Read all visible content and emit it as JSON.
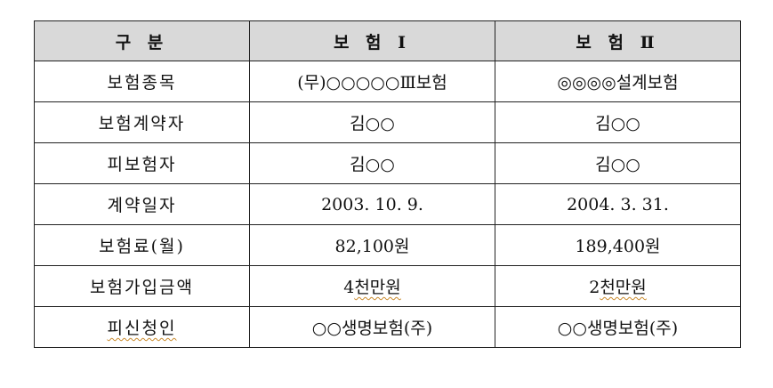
{
  "table": {
    "headers": [
      "구 분",
      "보 험 Ⅰ",
      "보 험 Ⅱ"
    ],
    "rows": [
      {
        "label": "보험종목",
        "ins1": "(무)○○○○○Ⅲ보험",
        "ins2": "◎◎◎◎설계보험"
      },
      {
        "label": "보험계약자",
        "ins1": "김○○",
        "ins2": "김○○"
      },
      {
        "label": "피보험자",
        "ins1": "김○○",
        "ins2": "김○○"
      },
      {
        "label": "계약일자",
        "ins1": "2003. 10. 9.",
        "ins2": "2004. 3. 31."
      },
      {
        "label": "보험료(월)",
        "ins1": "82,100원",
        "ins2": "189,400원"
      },
      {
        "label": "보험가입금액",
        "ins1_prefix": "4",
        "ins1": "천만원",
        "ins2_prefix": "2",
        "ins2": "천만원"
      },
      {
        "label": "피신청인",
        "ins1": "○○생명보험(주)",
        "ins2": "○○생명보험(주)"
      }
    ]
  },
  "colors": {
    "header_background": "#d9d9d9",
    "border": "#222222",
    "spellcheck_underline": "#c98a2c"
  }
}
